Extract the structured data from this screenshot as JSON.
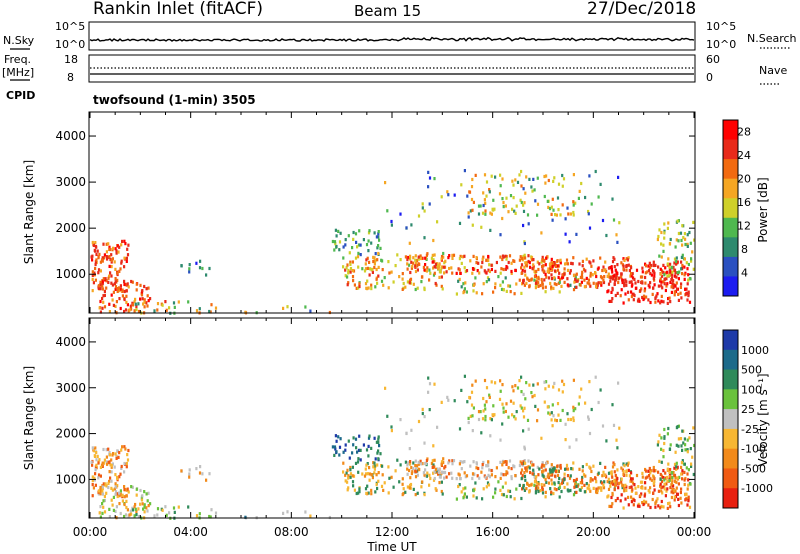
{
  "header": {
    "site": "Rankin Inlet (fitACF)",
    "beam": "Beam 15",
    "date": "27/Dec/2018"
  },
  "status": {
    "nsky_label": "N.Sky",
    "nsearch_label": "N.Search",
    "noise_left_ticks": [
      "10^5",
      "10^0"
    ],
    "noise_right_ticks": [
      "10^5",
      "10^0"
    ],
    "freq_label": "Freq.",
    "freq_unit": "[MHz]",
    "freq_ticks": [
      "18",
      "8"
    ],
    "nave_label": "Nave",
    "nave_ticks": [
      "60",
      "0"
    ],
    "cpid_label": "CPID",
    "cpid_value": "twofsound (1-min) 3505"
  },
  "colors": {
    "power": [
      "#1c1cf0",
      "#2a50c0",
      "#2e8a6e",
      "#4fb84f",
      "#cfd02a",
      "#f5a623",
      "#f26a10",
      "#e82a1a",
      "#ff0000"
    ],
    "velocity": [
      "#1e3aa8",
      "#1c6a8a",
      "#2f8a5a",
      "#6ac23c",
      "#c0c0c0",
      "#f7b733",
      "#f28a1a",
      "#f05a12",
      "#e82010"
    ]
  },
  "chart_data": [
    {
      "type": "heatmap",
      "title": "",
      "xlabel": "",
      "ylabel": "Slant Range [km]",
      "x_ticks": [
        "00:00",
        "04:00",
        "08:00",
        "12:00",
        "16:00",
        "20:00",
        "00:00"
      ],
      "y_ticks": [
        1000,
        2000,
        3000,
        4000
      ],
      "ylim": [
        180,
        4500
      ],
      "colorbar_label": "Power [dB]",
      "colorbar_ticks": [
        4,
        8,
        12,
        16,
        20,
        24,
        28
      ],
      "colorbar_range": [
        0,
        30
      ]
    },
    {
      "type": "heatmap",
      "title": "",
      "xlabel": "Time UT",
      "ylabel": "Slant Range [km]",
      "x_ticks": [
        "00:00",
        "04:00",
        "08:00",
        "12:00",
        "16:00",
        "20:00",
        "00:00"
      ],
      "y_ticks": [
        1000,
        2000,
        3000,
        4000
      ],
      "ylim": [
        180,
        4500
      ],
      "colorbar_label": "Velocity [m s⁻¹]",
      "colorbar_ticks": [
        1000,
        500,
        100,
        25,
        -25,
        -100,
        -500,
        -1000
      ]
    }
  ]
}
